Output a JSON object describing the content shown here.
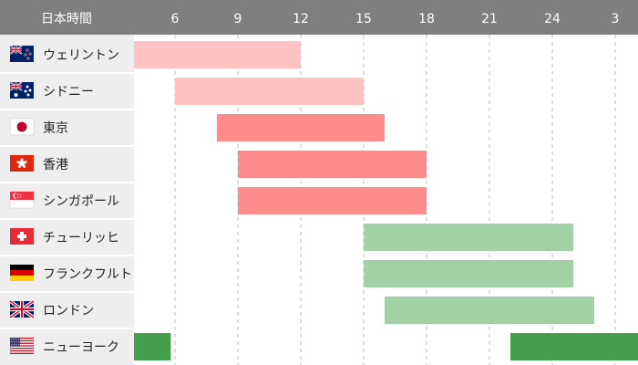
{
  "chart_data": {
    "type": "gantt",
    "title": "",
    "header_label": "日本時間",
    "x_ticks": [
      6,
      9,
      12,
      15,
      18,
      21,
      24,
      3
    ],
    "grid": "vertical-dashed",
    "x_axis_hours": [
      3,
      30
    ],
    "markets": [
      {
        "name": "ウェリントン",
        "flag": "new-zealand-flag-icon",
        "color": "#ffc1c1",
        "sessions": [
          [
            4.0,
            12.0
          ]
        ]
      },
      {
        "name": "シドニー",
        "flag": "australia-flag-icon",
        "color": "#ffc1c1",
        "sessions": [
          [
            6.0,
            15.0
          ]
        ]
      },
      {
        "name": "東京",
        "flag": "japan-flag-icon",
        "color": "#ff8c8c",
        "sessions": [
          [
            8.0,
            16.0
          ]
        ]
      },
      {
        "name": "香港",
        "flag": "hong-kong-flag-icon",
        "color": "#ff8c8c",
        "sessions": [
          [
            9.0,
            18.0
          ]
        ]
      },
      {
        "name": "シンガポール",
        "flag": "singapore-flag-icon",
        "color": "#ff8c8c",
        "sessions": [
          [
            9.0,
            18.0
          ]
        ]
      },
      {
        "name": "チューリッヒ",
        "flag": "switzerland-flag-icon",
        "color": "#a1d1a5",
        "sessions": [
          [
            15.0,
            25.0
          ]
        ]
      },
      {
        "name": "フランクフルト",
        "flag": "germany-flag-icon",
        "color": "#a1d1a5",
        "sessions": [
          [
            15.0,
            25.0
          ]
        ]
      },
      {
        "name": "ロンドン",
        "flag": "uk-flag-icon",
        "color": "#a1d1a5",
        "sessions": [
          [
            16.0,
            26.0
          ]
        ]
      },
      {
        "name": "ニューヨーク",
        "flag": "usa-flag-icon",
        "color": "#44a04c",
        "sessions": [
          [
            3.0,
            5.8
          ],
          [
            22.0,
            30.0
          ]
        ]
      }
    ]
  }
}
